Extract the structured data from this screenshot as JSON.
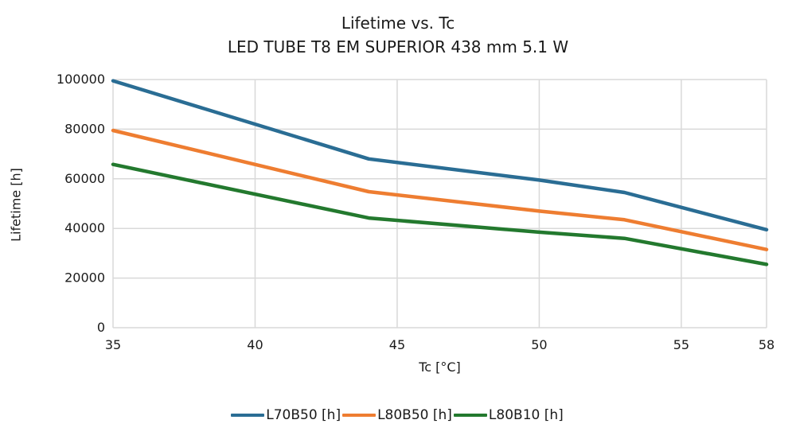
{
  "header": {
    "title": "Lifetime vs. Tc",
    "subtitle": "LED TUBE T8 EM SUPERIOR 438 mm 5.1 W"
  },
  "chart_data": {
    "type": "line",
    "title": "Lifetime vs. Tc",
    "subtitle": "LED TUBE T8 EM SUPERIOR 438 mm 5.1 W",
    "xlabel": "Tc [°C]",
    "ylabel": "Lifetime [h]",
    "xlim": [
      35,
      58
    ],
    "ylim": [
      0,
      100000
    ],
    "x_ticks": [
      35,
      40,
      45,
      50,
      55,
      58
    ],
    "y_ticks": [
      0,
      20000,
      40000,
      60000,
      80000,
      100000
    ],
    "grid": true,
    "legend_position": "bottom",
    "series": [
      {
        "name": "L70B50 [h]",
        "color": "#2a6d94",
        "x": [
          35,
          44,
          50,
          53,
          58
        ],
        "y": [
          99500,
          68000,
          59500,
          54500,
          39500
        ]
      },
      {
        "name": "L80B50 [h]",
        "color": "#ee7d31",
        "x": [
          35,
          44,
          50,
          53,
          58
        ],
        "y": [
          79500,
          54800,
          47000,
          43500,
          31500
        ]
      },
      {
        "name": "L80B10 [h]",
        "color": "#23792e",
        "x": [
          35,
          44,
          50,
          53,
          58
        ],
        "y": [
          65800,
          44200,
          38500,
          36000,
          25500
        ]
      }
    ]
  }
}
